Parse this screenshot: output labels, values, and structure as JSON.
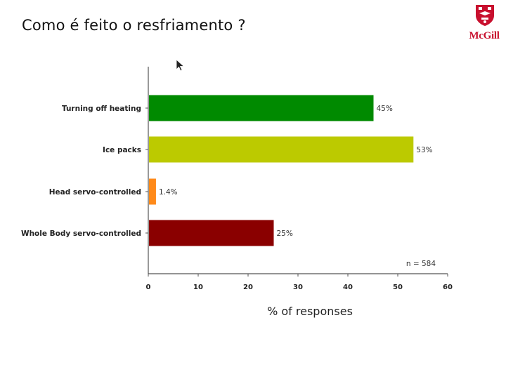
{
  "slide": {
    "title": "Como é feito o resfriamento ?",
    "logo_text": "McGill",
    "logo_color": "#c8102e"
  },
  "chart_data": {
    "type": "bar",
    "orientation": "horizontal",
    "categories": [
      "Turning off heating",
      "Ice packs",
      "Head servo-controlled",
      "Whole Body servo-controlled"
    ],
    "values": [
      45,
      53,
      1.4,
      25
    ],
    "value_labels": [
      "45%",
      "53%",
      "1.4%",
      "25%"
    ],
    "colors": [
      "#008a00",
      "#bcca00",
      "#ff8a1a",
      "#8a0000"
    ],
    "xlabel": "% of responses",
    "xlim": [
      0,
      60
    ],
    "xticks": [
      0,
      10,
      20,
      30,
      40,
      50,
      60
    ],
    "tick_labels": [
      "0",
      "10",
      "20",
      "30",
      "40",
      "50",
      "60"
    ],
    "annotation": "n = 584",
    "grid": false
  }
}
